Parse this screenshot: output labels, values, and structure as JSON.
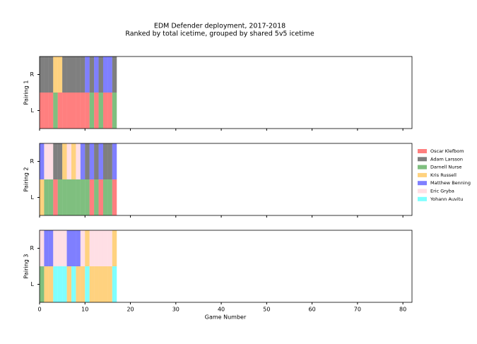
{
  "chart_data": {
    "type": "segments",
    "title": "EDM Defender deployment, 2017-2018",
    "subtitle": "Ranked by total icetime, grouped by shared 5v5 icetime",
    "xlabel": "Game Number",
    "xlim": [
      0,
      82
    ],
    "xticks": [
      0,
      10,
      20,
      30,
      40,
      50,
      60,
      70,
      80
    ],
    "games": [
      0,
      1,
      2,
      3,
      4,
      5,
      6,
      7,
      8,
      9,
      10,
      11,
      12,
      13,
      14,
      15,
      16
    ],
    "series": [
      {
        "name": "Oscar Klefbom",
        "color": "red"
      },
      {
        "name": "Adam Larsson",
        "color": "black"
      },
      {
        "name": "Darnell Nurse",
        "color": "green"
      },
      {
        "name": "Kris Russell",
        "color": "orange"
      },
      {
        "name": "Matthew Benning",
        "color": "blue"
      },
      {
        "name": "Eric Gryba",
        "color": "pink"
      },
      {
        "name": "Yohann Auvitu",
        "color": "cyan"
      }
    ],
    "alpha": 0.5,
    "panels": [
      {
        "ylabel": "Pairing 1",
        "rows": [
          "R",
          "L"
        ],
        "players": [
          [
            1,
            1,
            1,
            3,
            3,
            1,
            1,
            1,
            1,
            1,
            4,
            1,
            4,
            1,
            4,
            4,
            1
          ],
          [
            0,
            0,
            0,
            2,
            0,
            0,
            0,
            0,
            0,
            0,
            0,
            2,
            0,
            2,
            0,
            0,
            2
          ]
        ]
      },
      {
        "ylabel": "Pairing 2",
        "rows": [
          "R",
          "L"
        ],
        "players": [
          [
            4,
            5,
            5,
            1,
            1,
            3,
            5,
            3,
            5,
            4,
            1,
            4,
            1,
            4,
            1,
            1,
            4
          ],
          [
            3,
            2,
            2,
            0,
            2,
            2,
            2,
            2,
            2,
            2,
            2,
            0,
            2,
            0,
            2,
            2,
            0
          ]
        ]
      },
      {
        "ylabel": "Pairing 3",
        "rows": [
          "R",
          "L"
        ],
        "players": [
          [
            5,
            4,
            4,
            5,
            5,
            5,
            4,
            4,
            4,
            5,
            3,
            5,
            5,
            5,
            5,
            5,
            3
          ],
          [
            2,
            3,
            3,
            6,
            6,
            6,
            3,
            6,
            3,
            3,
            6,
            3,
            3,
            3,
            3,
            3,
            6
          ]
        ]
      }
    ]
  }
}
